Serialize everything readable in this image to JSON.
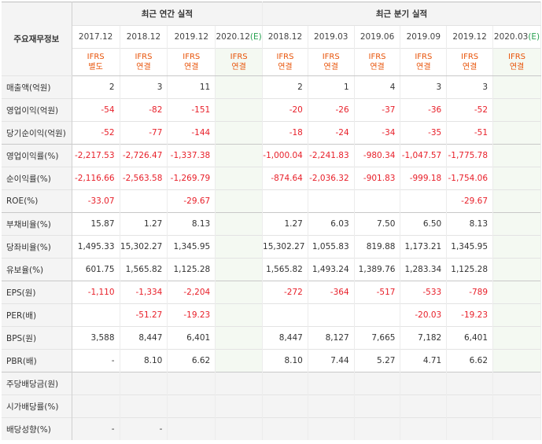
{
  "header": {
    "row_label": "주요재무정보",
    "annual_title": "최근 연간 실적",
    "quarter_title": "최근 분기 실적"
  },
  "periods": [
    {
      "label": "2017.12",
      "est": false,
      "ifrs": "IFRS",
      "basis": "별도"
    },
    {
      "label": "2018.12",
      "est": false,
      "ifrs": "IFRS",
      "basis": "연결"
    },
    {
      "label": "2019.12",
      "est": false,
      "ifrs": "IFRS",
      "basis": "연결"
    },
    {
      "label": "2020.12",
      "est_mark": "(E)",
      "est": true,
      "ifrs": "IFRS",
      "basis": "연결"
    },
    {
      "label": "2018.12",
      "est": false,
      "ifrs": "IFRS",
      "basis": "연결"
    },
    {
      "label": "2019.03",
      "est": false,
      "ifrs": "IFRS",
      "basis": "연결"
    },
    {
      "label": "2019.06",
      "est": false,
      "ifrs": "IFRS",
      "basis": "연결"
    },
    {
      "label": "2019.09",
      "est": false,
      "ifrs": "IFRS",
      "basis": "연결"
    },
    {
      "label": "2019.12",
      "est": false,
      "ifrs": "IFRS",
      "basis": "연결"
    },
    {
      "label": "2020.03",
      "est_mark": "(E)",
      "est": true,
      "ifrs": "IFRS",
      "basis": "연결"
    }
  ],
  "rows": [
    {
      "label": "매출액(억원)",
      "group_start": true,
      "values": [
        "2",
        "3",
        "11",
        "",
        "2",
        "1",
        "4",
        "3",
        "3",
        ""
      ]
    },
    {
      "label": "영업이익(억원)",
      "values": [
        "-54",
        "-82",
        "-151",
        "",
        "-20",
        "-26",
        "-37",
        "-36",
        "-52",
        ""
      ]
    },
    {
      "label": "당기순이익(억원)",
      "values": [
        "-52",
        "-77",
        "-144",
        "",
        "-18",
        "-24",
        "-34",
        "-35",
        "-51",
        ""
      ]
    },
    {
      "label": "영업이익률(%)",
      "group_start": true,
      "values": [
        "-2,217.53",
        "-2,726.47",
        "-1,337.38",
        "",
        "-1,000.04",
        "-2,241.83",
        "-980.34",
        "-1,047.57",
        "-1,775.78",
        ""
      ]
    },
    {
      "label": "순이익률(%)",
      "values": [
        "-2,116.66",
        "-2,563.58",
        "-1,269.79",
        "",
        "-874.64",
        "-2,036.32",
        "-901.83",
        "-999.18",
        "-1,754.06",
        ""
      ]
    },
    {
      "label": "ROE(%)",
      "values": [
        "-33.07",
        "",
        "-29.67",
        "",
        "",
        "",
        "",
        "",
        "-29.67",
        ""
      ]
    },
    {
      "label": "부채비율(%)",
      "group_start": true,
      "values": [
        "15.87",
        "1.27",
        "8.13",
        "",
        "1.27",
        "6.03",
        "7.50",
        "6.50",
        "8.13",
        ""
      ]
    },
    {
      "label": "당좌비율(%)",
      "values": [
        "1,495.33",
        "15,302.27",
        "1,345.95",
        "",
        "15,302.27",
        "1,055.83",
        "819.88",
        "1,173.21",
        "1,345.95",
        ""
      ]
    },
    {
      "label": "유보율(%)",
      "values": [
        "601.75",
        "1,565.82",
        "1,125.28",
        "",
        "1,565.82",
        "1,493.24",
        "1,389.76",
        "1,283.34",
        "1,125.28",
        ""
      ]
    },
    {
      "label": "EPS(원)",
      "group_start": true,
      "values": [
        "-1,110",
        "-1,334",
        "-2,204",
        "",
        "-272",
        "-364",
        "-517",
        "-533",
        "-789",
        ""
      ]
    },
    {
      "label": "PER(배)",
      "values": [
        "",
        "-51.27",
        "-19.23",
        "",
        "",
        "",
        "",
        "-20.03",
        "-19.23",
        ""
      ]
    },
    {
      "label": "BPS(원)",
      "values": [
        "3,588",
        "8,447",
        "6,401",
        "",
        "8,447",
        "8,127",
        "7,665",
        "7,182",
        "6,401",
        ""
      ]
    },
    {
      "label": "PBR(배)",
      "values": [
        "-",
        "8.10",
        "6.62",
        "",
        "8.10",
        "7.44",
        "5.27",
        "4.71",
        "6.62",
        ""
      ]
    },
    {
      "label": "주당배당금(원)",
      "group_start": true,
      "shaded": true,
      "values": [
        "",
        "",
        "",
        "",
        "",
        "",
        "",
        "",
        "",
        ""
      ]
    },
    {
      "label": "시가배당률(%)",
      "shaded": true,
      "values": [
        "",
        "",
        "",
        "",
        "",
        "",
        "",
        "",
        "",
        ""
      ]
    },
    {
      "label": "배당성향(%)",
      "shaded": true,
      "values": [
        "-",
        "-",
        "",
        "",
        "",
        "",
        "",
        "",
        "",
        ""
      ]
    }
  ],
  "colors": {
    "negative": "#e8202a",
    "ifrs": "#e8540a",
    "estimate": "#27a150",
    "estimate_bg": "#f4f9f2"
  }
}
